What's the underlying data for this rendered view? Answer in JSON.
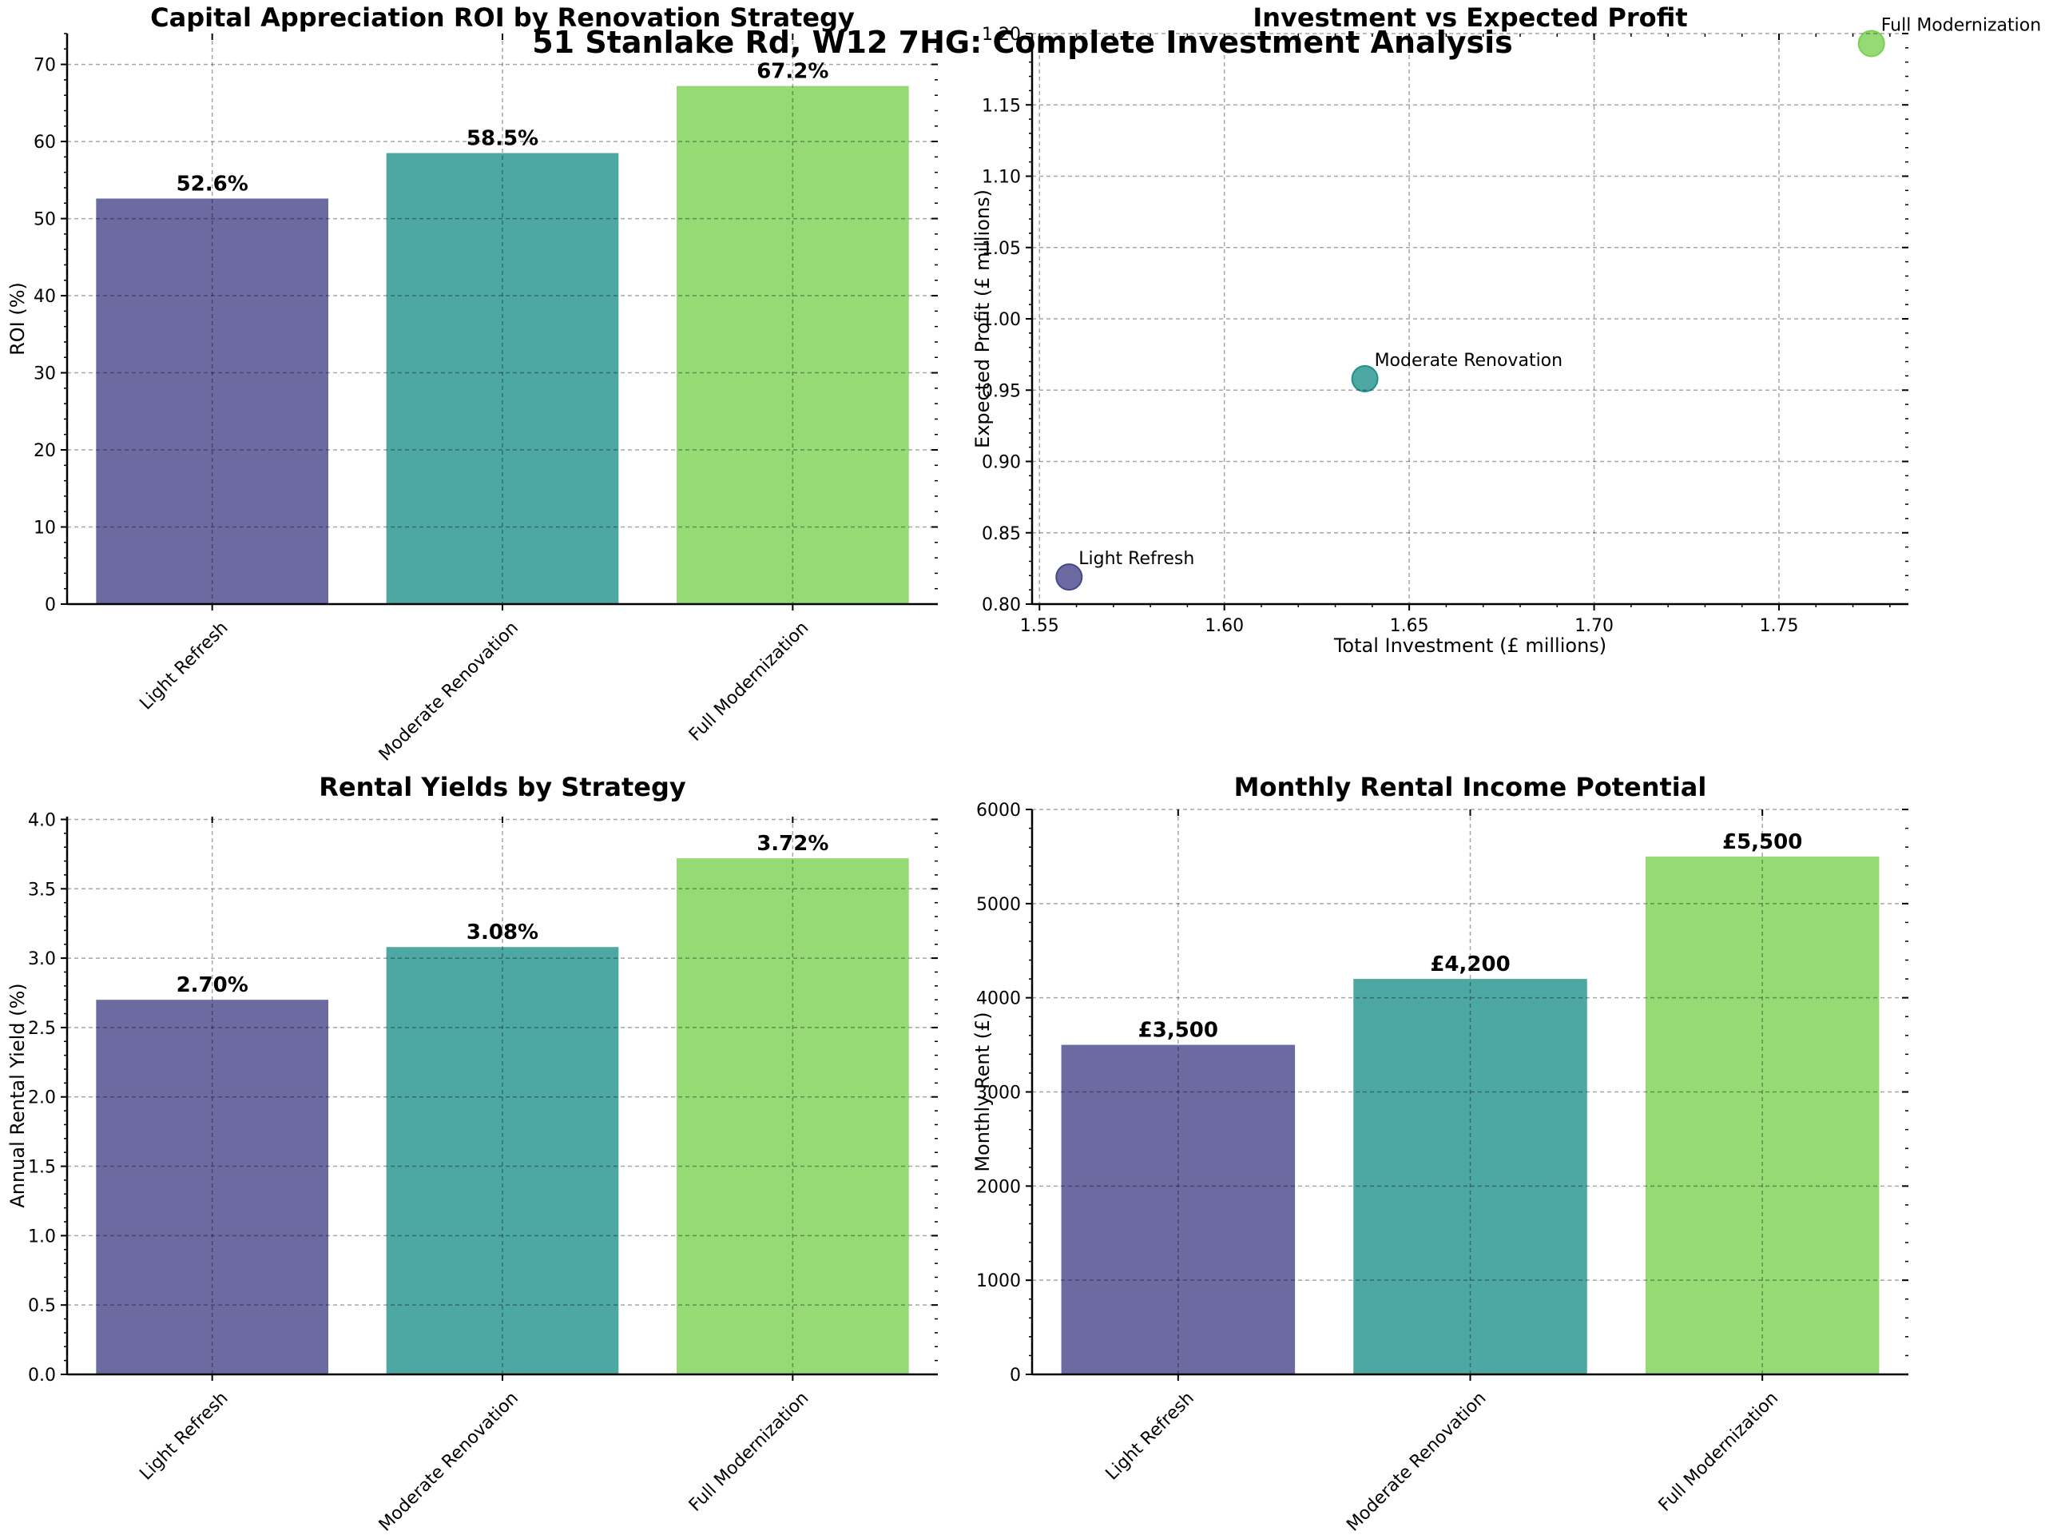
{
  "suptitle": "51 Stanlake Rd, W12 7HG: Complete Investment Analysis",
  "colors": {
    "Light Refresh": "#46468a",
    "Moderate Renovation": "#21918c",
    "Full Modernization": "#7ad151"
  },
  "chart_data": [
    {
      "type": "bar",
      "title": "Capital Appreciation ROI by Renovation Strategy",
      "xlabel": "",
      "ylabel": "ROI (%)",
      "categories": [
        "Light Refresh",
        "Moderate Renovation",
        "Full Modernization"
      ],
      "values": [
        52.6,
        58.5,
        67.2
      ],
      "value_labels": [
        "52.6%",
        "58.5%",
        "67.2%"
      ],
      "ylim": [
        0,
        74
      ],
      "yticks": [
        0,
        10,
        20,
        30,
        40,
        50,
        60,
        70
      ],
      "ytick_labels": [
        "0",
        "10",
        "20",
        "30",
        "40",
        "50",
        "60",
        "70"
      ],
      "grid": true
    },
    {
      "type": "scatter",
      "title": "Investment vs Expected Profit",
      "xlabel": "Total Investment (£ millions)",
      "ylabel": "Expected Profit (£ millions)",
      "points": [
        {
          "label": "Light Refresh",
          "x": 1.558,
          "y": 0.819
        },
        {
          "label": "Moderate Renovation",
          "x": 1.638,
          "y": 0.958
        },
        {
          "label": "Full Modernization",
          "x": 1.775,
          "y": 1.193
        }
      ],
      "xlim": [
        1.548,
        1.785
      ],
      "ylim": [
        0.8,
        1.2
      ],
      "xticks": [
        1.55,
        1.6,
        1.65,
        1.7,
        1.75
      ],
      "xtick_labels": [
        "1.55",
        "1.60",
        "1.65",
        "1.70",
        "1.75"
      ],
      "yticks": [
        0.8,
        0.85,
        0.9,
        0.95,
        1.0,
        1.05,
        1.1,
        1.15,
        1.2
      ],
      "ytick_labels": [
        "0.80",
        "0.85",
        "0.90",
        "0.95",
        "1.00",
        "1.05",
        "1.10",
        "1.15",
        "1.20"
      ],
      "grid": true
    },
    {
      "type": "bar",
      "title": "Rental Yields by Strategy",
      "xlabel": "",
      "ylabel": "Annual Rental Yield (%)",
      "categories": [
        "Light Refresh",
        "Moderate Renovation",
        "Full Modernization"
      ],
      "values": [
        2.7,
        3.08,
        3.72
      ],
      "value_labels": [
        "2.70%",
        "3.08%",
        "3.72%"
      ],
      "ylim": [
        0,
        4.02
      ],
      "yticks": [
        0,
        0.5,
        1.0,
        1.5,
        2.0,
        2.5,
        3.0,
        3.5,
        4.0
      ],
      "ytick_labels": [
        "0.0",
        "0.5",
        "1.0",
        "1.5",
        "2.0",
        "2.5",
        "3.0",
        "3.5",
        "4.0"
      ],
      "grid": true
    },
    {
      "type": "bar",
      "title": "Monthly Rental Income Potential",
      "xlabel": "",
      "ylabel": "Monthly Rent (£)",
      "categories": [
        "Light Refresh",
        "Moderate Renovation",
        "Full Modernization"
      ],
      "values": [
        3500,
        4200,
        5500
      ],
      "value_labels": [
        "£3,500",
        "£4,200",
        "£5,500"
      ],
      "ylim": [
        0,
        6000
      ],
      "yticks": [
        0,
        1000,
        2000,
        3000,
        4000,
        5000,
        6000
      ],
      "ytick_labels": [
        "0",
        "1000",
        "2000",
        "3000",
        "4000",
        "5000",
        "6000"
      ],
      "grid": true
    }
  ]
}
